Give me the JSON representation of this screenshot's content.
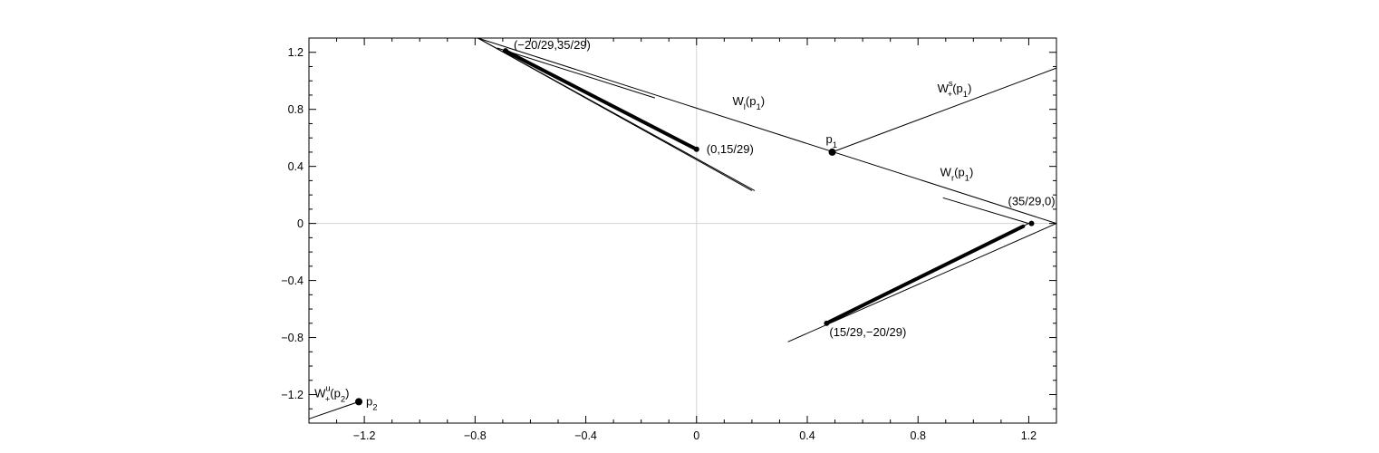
{
  "chart_data": {
    "type": "line",
    "title": "",
    "xlabel": "",
    "ylabel": "",
    "xlim": [
      -1.4,
      1.3
    ],
    "ylim": [
      -1.4,
      1.3
    ],
    "x_ticks": [
      {
        "value": -1.2,
        "label": "−1.2"
      },
      {
        "value": -0.8,
        "label": "−0.8"
      },
      {
        "value": -0.4,
        "label": "−0.4"
      },
      {
        "value": 0,
        "label": "0"
      },
      {
        "value": 0.4,
        "label": "0.4"
      },
      {
        "value": 0.8,
        "label": "0.8"
      },
      {
        "value": 1.2,
        "label": "1.2"
      }
    ],
    "y_ticks": [
      {
        "value": 1.2,
        "label": "1.2"
      },
      {
        "value": 0.8,
        "label": "0.8"
      },
      {
        "value": 0.4,
        "label": "0.4"
      },
      {
        "value": 0,
        "label": "0"
      },
      {
        "value": -0.4,
        "label": "−0.4"
      },
      {
        "value": -0.8,
        "label": "−0.8"
      },
      {
        "value": -1.2,
        "label": "−1.2"
      }
    ],
    "minor_tick_step": 0.1,
    "reference_lines": {
      "x0": true,
      "y0": true,
      "color": "#d3d3d3"
    },
    "thin_curves": [
      [
        [
          -0.79,
          1.3
        ],
        [
          1.3,
          0.0
        ]
      ],
      [
        [
          0.49,
          0.5
        ],
        [
          1.3,
          1.09
        ]
      ],
      [
        [
          -0.79,
          1.3
        ],
        [
          0.21,
          0.23
        ]
      ],
      [
        [
          -0.79,
          1.3
        ],
        [
          0.2,
          0.23
        ]
      ],
      [
        [
          -0.72,
          1.23
        ],
        [
          -0.15,
          0.88
        ]
      ],
      [
        [
          1.3,
          0.0
        ],
        [
          0.33,
          -0.83
        ]
      ],
      [
        [
          1.2,
          0.0
        ],
        [
          0.47,
          -0.7
        ]
      ],
      [
        [
          0.89,
          0.18
        ],
        [
          1.2,
          0.0
        ]
      ],
      [
        [
          -1.4,
          -1.37
        ],
        [
          -1.22,
          -1.25
        ]
      ]
    ],
    "thick_curves": [
      [
        [
          -0.69,
          1.21
        ],
        [
          0.0,
          0.52
        ]
      ],
      [
        [
          0.48,
          -0.69
        ],
        [
          1.18,
          -0.02
        ]
      ]
    ],
    "points": [
      {
        "x": -0.69,
        "y": 1.21,
        "label": "(−20/29,35/29)",
        "size": "small"
      },
      {
        "x": 0.0,
        "y": 0.52,
        "label": "(0,15/29)",
        "size": "small"
      },
      {
        "x": 0.49,
        "y": 0.5,
        "label": "p",
        "sub": "1",
        "size": "large"
      },
      {
        "x": 1.21,
        "y": 0.0,
        "label": "(35/29,0)",
        "size": "small"
      },
      {
        "x": 0.47,
        "y": -0.7,
        "label": "(15/29,−20/29)",
        "size": "small"
      },
      {
        "x": -1.22,
        "y": -1.25,
        "label": "p",
        "sub": "2",
        "size": "large"
      }
    ],
    "annotations": [
      {
        "id": "wl-p1",
        "text": "W",
        "sub": "l",
        "tail": "(p",
        "tail_sub": "1",
        "end": ")",
        "x": 0.13,
        "y": 0.83
      },
      {
        "id": "ws-p1",
        "text": "W",
        "sub": "+",
        "sup": "s",
        "tail": "(p",
        "tail_sub": "1",
        "end": ")",
        "x": 0.87,
        "y": 0.92
      },
      {
        "id": "wr-p1",
        "text": "W",
        "sub": "r",
        "tail": "(p",
        "tail_sub": "1",
        "end": ")",
        "x": 0.88,
        "y": 0.33
      },
      {
        "id": "wu-p2",
        "text": "W",
        "sub": "+",
        "sup": "u",
        "tail": "(p",
        "tail_sub": "2",
        "end": ")",
        "x": -1.38,
        "y": -1.22
      }
    ]
  }
}
